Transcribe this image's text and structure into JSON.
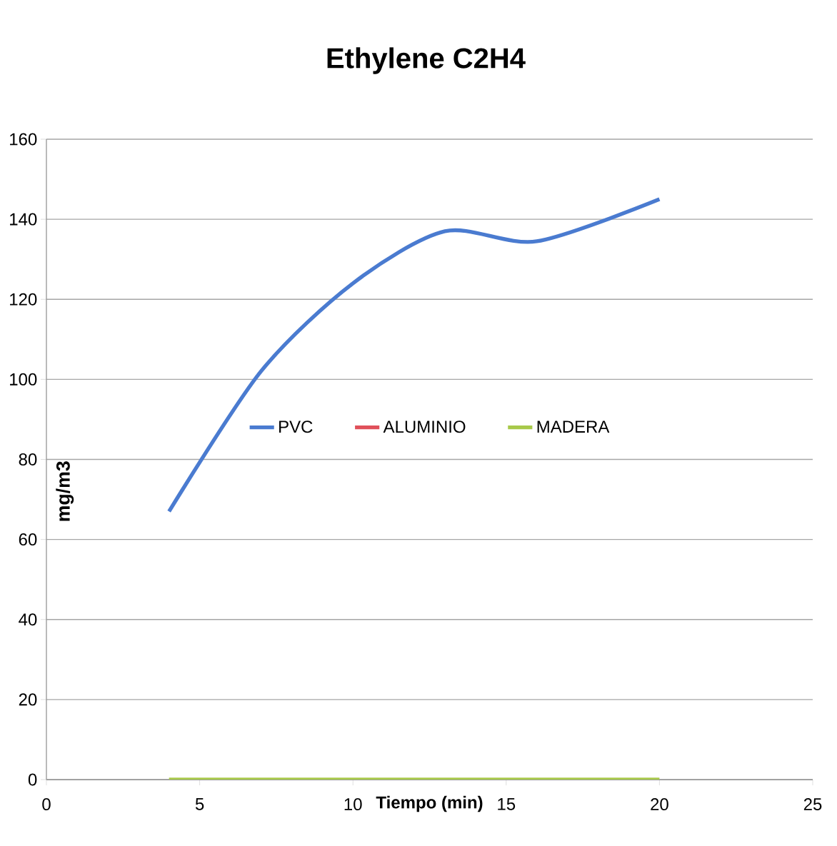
{
  "chart_data": {
    "type": "line",
    "title": "Ethylene C2H4",
    "xlabel": "Tiempo (min)",
    "ylabel": "mg/m3",
    "series": [
      {
        "name": "PVC",
        "color": "#4a7bd0",
        "x": [
          4,
          7,
          10,
          13,
          16,
          20
        ],
        "values": [
          67,
          102,
          124,
          137,
          134.5,
          145
        ]
      },
      {
        "name": "ALUMINIO",
        "color": "#e0505a",
        "values": [
          null
        ]
      },
      {
        "name": "MADERA",
        "color": "#a8c94a",
        "x": [
          4,
          20
        ],
        "values": [
          0,
          0
        ]
      }
    ],
    "xlim": [
      0,
      25
    ],
    "xticks": [
      0,
      5,
      10,
      15,
      20,
      25
    ],
    "ylim": [
      0,
      160
    ],
    "yticks": [
      0,
      20,
      40,
      60,
      80,
      100,
      120,
      140,
      160
    ],
    "grid": "y",
    "legend": "center",
    "marker": "none",
    "line_style": "solid"
  }
}
